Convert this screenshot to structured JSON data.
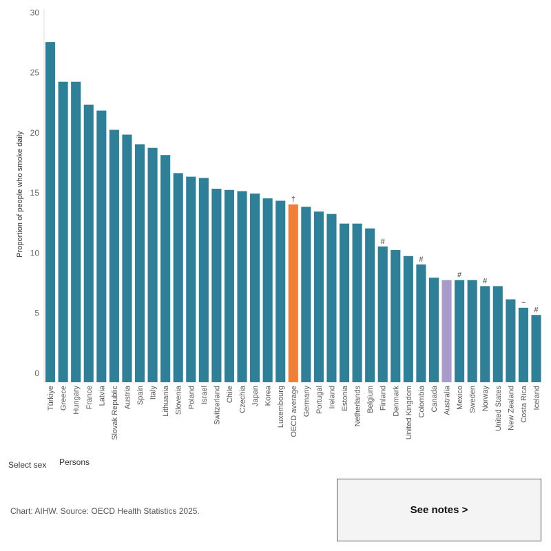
{
  "chart_data": {
    "type": "bar",
    "ylabel": "Proportion of people who smoke daily",
    "ylim": [
      0,
      31
    ],
    "yticks": [
      0,
      5,
      10,
      15,
      20,
      25,
      30
    ],
    "grid": false,
    "categories": [
      "Türkiye",
      "Greece",
      "Hungary",
      "France",
      "Latvia",
      "Slovak Republic",
      "Austria",
      "Spain",
      "Italy",
      "Lithuania",
      "Slovenia",
      "Poland",
      "Israel",
      "Switzerland",
      "Chile",
      "Czechia",
      "Japan",
      "Korea",
      "Luxembourg",
      "OECD average",
      "Germany",
      "Portugal",
      "Ireland",
      "Estonia",
      "Netherlands",
      "Belgium",
      "Finland",
      "Denmark",
      "United Kingdom",
      "Colombia",
      "Canada",
      "Australia",
      "Mexico",
      "Sweden",
      "Norway",
      "United States",
      "New Zealand",
      "Costa Rica",
      "Iceland"
    ],
    "values": [
      28.3,
      25.0,
      25.0,
      23.1,
      22.6,
      21.0,
      20.6,
      19.8,
      19.5,
      18.9,
      17.4,
      17.1,
      17.0,
      16.1,
      16.0,
      15.9,
      15.7,
      15.3,
      15.1,
      14.8,
      14.6,
      14.2,
      14.0,
      13.2,
      13.2,
      12.8,
      11.3,
      11.0,
      10.5,
      9.8,
      8.7,
      8.5,
      8.5,
      8.5,
      8.0,
      8.0,
      6.9,
      6.2,
      5.6
    ],
    "annotations": [
      "",
      "",
      "",
      "",
      "",
      "",
      "",
      "",
      "",
      "",
      "",
      "",
      "",
      "",
      "",
      "",
      "",
      "",
      "",
      "†",
      "",
      "",
      "",
      "",
      "",
      "",
      "#",
      "",
      "",
      "#",
      "",
      "",
      "#",
      "",
      "#",
      "",
      "",
      "~",
      "#"
    ],
    "colors": {
      "default": "#2e7f98",
      "highlight_oecd": "#f07f35",
      "highlight_australia": "#a89bcb",
      "axis": "#dddddd",
      "text": "#666666"
    },
    "highlights": {
      "OECD average": "highlight_oecd",
      "Australia": "highlight_australia"
    }
  },
  "filter": {
    "label": "Select sex",
    "value": "Persons"
  },
  "source": "Chart: AIHW. Source: OECD Health Statistics 2025.",
  "notes_button": {
    "label": "See notes >"
  }
}
